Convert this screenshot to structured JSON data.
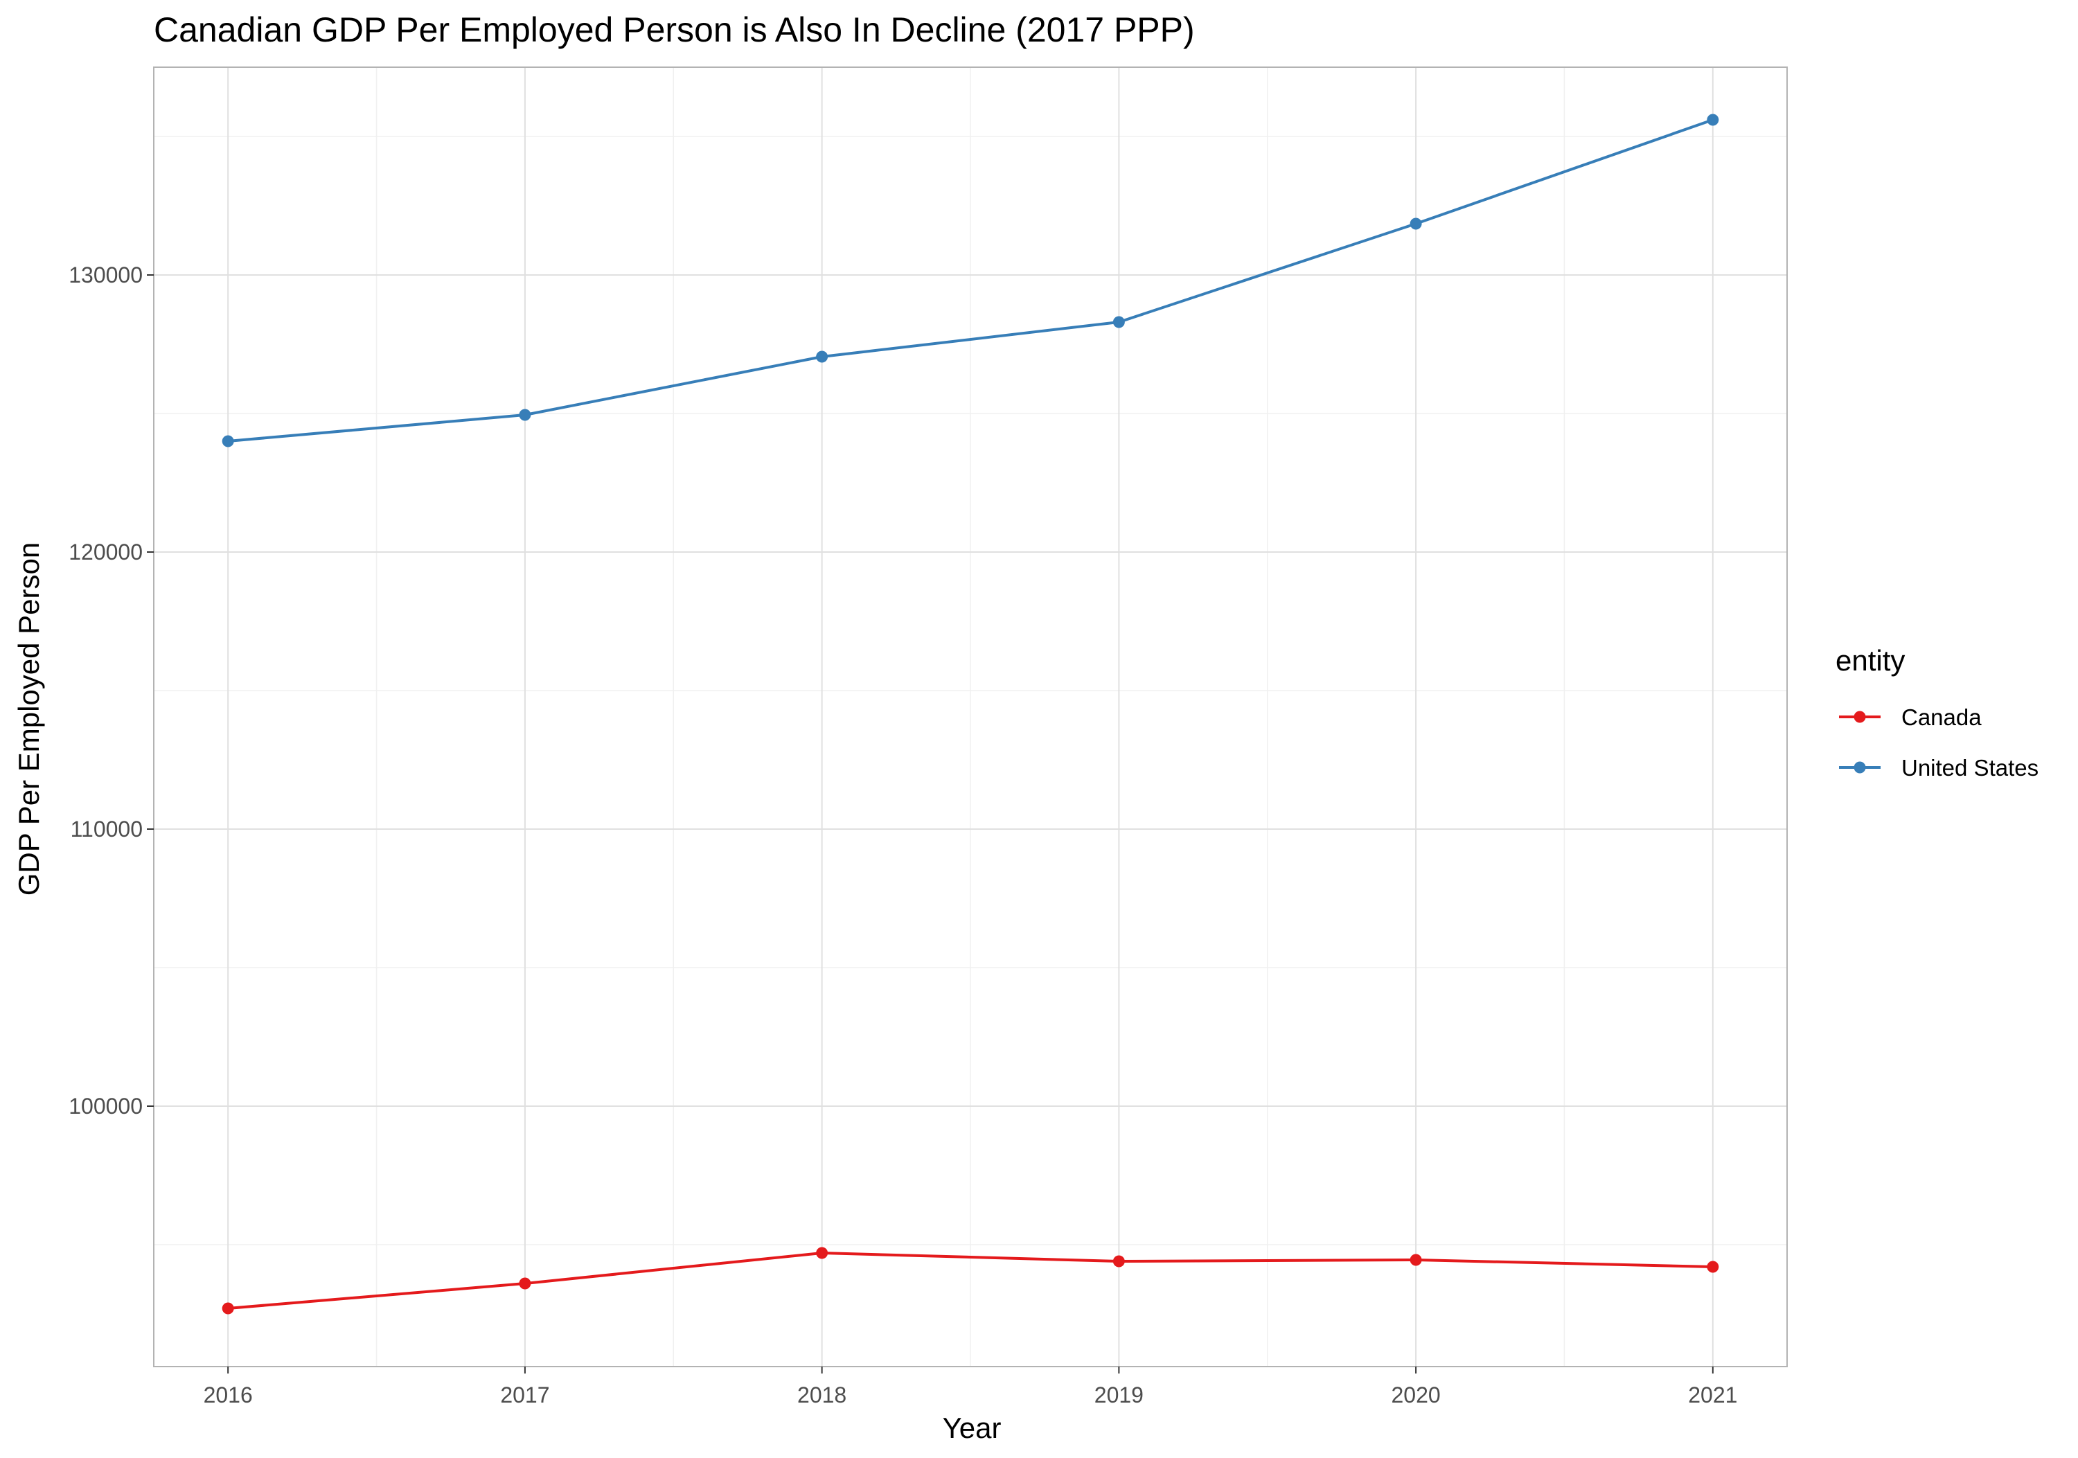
{
  "chart_data": {
    "type": "line",
    "title": "Canadian GDP Per Employed Person is Also In Decline (2017 PPP)",
    "xlabel": "Year",
    "ylabel": "GDP Per Employed Person",
    "x": [
      2016,
      2017,
      2018,
      2019,
      2020,
      2021
    ],
    "x_tick_labels": [
      "2016",
      "2017",
      "2018",
      "2019",
      "2020",
      "2021"
    ],
    "xlim": [
      2015.75,
      2021.25
    ],
    "ylim": [
      90600,
      137500
    ],
    "y_ticks": [
      100000,
      110000,
      120000,
      130000
    ],
    "y_tick_labels": [
      "100000",
      "110000",
      "120000",
      "130000"
    ],
    "grid": true,
    "legend": {
      "title": "entity",
      "placement": "right"
    },
    "series": [
      {
        "name": "Canada",
        "color": "#E41A1C",
        "values": [
          92700,
          93600,
          94700,
          94400,
          94450,
          94200
        ]
      },
      {
        "name": "United States",
        "color": "#377EB8",
        "values": [
          124000,
          124950,
          127050,
          128300,
          131850,
          135600
        ]
      }
    ]
  }
}
